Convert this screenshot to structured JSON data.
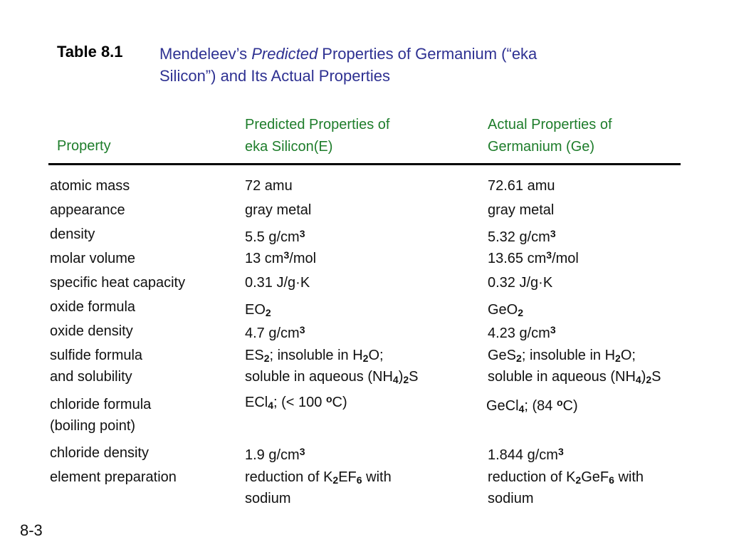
{
  "title": {
    "label": "Table 8.1",
    "line1_pre": "Mendeleev’s ",
    "line1_italic": "Predicted",
    "line1_post": " Properties of Germanium (“eka",
    "line2": "Silicon”) and Its Actual Properties"
  },
  "headers": {
    "property": "Property",
    "predicted_line1": "Predicted Properties of",
    "predicted_line2": "eka Silicon(E)",
    "actual_line1": "Actual Properties of",
    "actual_line2": "Germanium (Ge)"
  },
  "rows": {
    "atomic_mass": {
      "property": "atomic mass",
      "predicted": "72 amu",
      "actual": "72.61 amu"
    },
    "appearance": {
      "property": "appearance",
      "predicted": "gray metal",
      "actual": "gray metal"
    },
    "density": {
      "property": "density",
      "predicted_base": "5.5 g/cm",
      "predicted_sup": "3",
      "actual_base": "5.32 g/cm",
      "actual_sup": "3"
    },
    "molar_volume": {
      "property": "molar volume",
      "predicted_pre": "13 cm",
      "predicted_sup": "3",
      "predicted_post": "/mol",
      "actual_pre": "13.65 cm",
      "actual_sup": "3",
      "actual_post": "/mol"
    },
    "specific_heat": {
      "property": "specific heat capacity",
      "predicted": "0.31 J/g·K",
      "actual": "0.32 J/g·K"
    },
    "oxide_formula": {
      "property": "oxide formula",
      "predicted_base": "EO",
      "predicted_sub": "2",
      "actual_base": "GeO",
      "actual_sub": "2"
    },
    "oxide_density": {
      "property": "oxide density",
      "predicted_base": "4.7 g/cm",
      "predicted_sup": "3",
      "actual_base": "4.23 g/cm",
      "actual_sup": "3"
    },
    "sulfide": {
      "property_line1": "sulfide formula",
      "property_line2": "and solubility",
      "predicted_a": "ES",
      "predicted_sub1": "2",
      "predicted_b": "; insoluble in H",
      "predicted_sub2": "2",
      "predicted_c": "O;",
      "predicted_d": "soluble in aqueous (NH",
      "predicted_sub3": "4",
      "predicted_e": ")",
      "predicted_sub4": "2",
      "predicted_f": "S",
      "actual_a": "GeS",
      "actual_sub1": "2",
      "actual_b": "; insoluble in H",
      "actual_sub2": "2",
      "actual_c": "O;",
      "actual_d": "soluble in aqueous (NH",
      "actual_sub3": "4",
      "actual_e": ")",
      "actual_sub4": "2",
      "actual_f": "S"
    },
    "chloride_formula": {
      "property_line1": "chloride formula",
      "property_line2": "(boiling point)",
      "predicted_a": "ECl",
      "predicted_sub": "4",
      "predicted_b": "; (< 100 ",
      "predicted_sup": "o",
      "predicted_c": "C)",
      "actual_a": "GeCl",
      "actual_sub": "4",
      "actual_b": "; (84 ",
      "actual_sup": "o",
      "actual_c": "C)"
    },
    "chloride_density": {
      "property": "chloride density",
      "predicted_base": "1.9 g/cm",
      "predicted_sup": "3",
      "actual_base": "1.844 g/cm",
      "actual_sup": "3"
    },
    "element_prep": {
      "property": "element preparation",
      "predicted_a": "reduction of K",
      "predicted_sub1": "2",
      "predicted_b": "EF",
      "predicted_sub2": "6",
      "predicted_c": " with",
      "predicted_line2": "sodium",
      "actual_a": "reduction of K",
      "actual_sub1": "2",
      "actual_b": "GeF",
      "actual_sub2": "6",
      "actual_c": " with",
      "actual_line2": "sodium"
    }
  },
  "page_number": "8-3",
  "colors": {
    "title": "#2e3192",
    "header": "#1e7d2b",
    "text": "#111111"
  }
}
